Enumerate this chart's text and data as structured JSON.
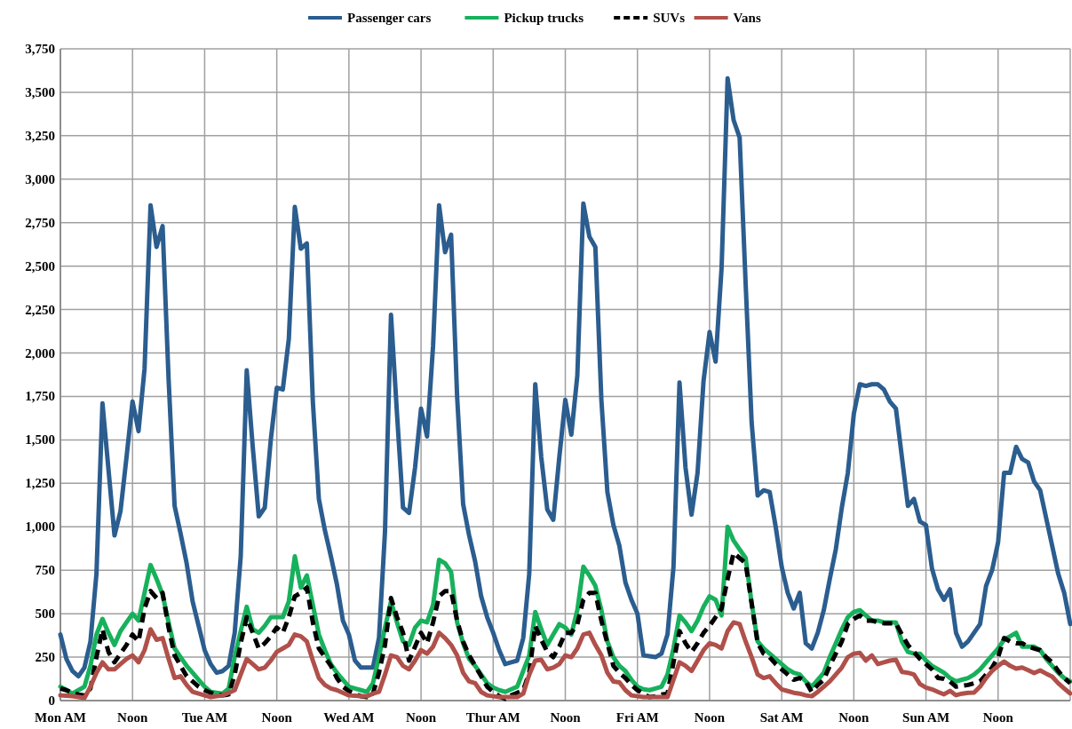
{
  "chart_data": {
    "type": "line",
    "ylim": [
      0,
      3750
    ],
    "categories": [
      "Mon AM",
      null,
      null,
      null,
      null,
      null,
      null,
      null,
      null,
      null,
      null,
      null,
      "Noon",
      null,
      null,
      null,
      null,
      null,
      null,
      null,
      null,
      null,
      null,
      null,
      "Tue AM",
      null,
      null,
      null,
      null,
      null,
      null,
      null,
      null,
      null,
      null,
      null,
      "Noon",
      null,
      null,
      null,
      null,
      null,
      null,
      null,
      null,
      null,
      null,
      null,
      "Wed AM",
      null,
      null,
      null,
      null,
      null,
      null,
      null,
      null,
      null,
      null,
      null,
      "Noon",
      null,
      null,
      null,
      null,
      null,
      null,
      null,
      null,
      null,
      null,
      null,
      "Thur AM",
      null,
      null,
      null,
      null,
      null,
      null,
      null,
      null,
      null,
      null,
      null,
      "Noon",
      null,
      null,
      null,
      null,
      null,
      null,
      null,
      null,
      null,
      null,
      null,
      "Fri AM",
      null,
      null,
      null,
      null,
      null,
      null,
      null,
      null,
      null,
      null,
      null,
      "Noon",
      null,
      null,
      null,
      null,
      null,
      null,
      null,
      null,
      null,
      null,
      null,
      "Sat AM",
      null,
      null,
      null,
      null,
      null,
      null,
      null,
      null,
      null,
      null,
      null,
      "Noon",
      null,
      null,
      null,
      null,
      null,
      null,
      null,
      null,
      null,
      null,
      null,
      "Sun AM",
      null,
      null,
      null,
      null,
      null,
      null,
      null,
      null,
      null,
      null,
      null,
      "Noon",
      null,
      null,
      null,
      null,
      null,
      null,
      null,
      null,
      null,
      null,
      null,
      null
    ],
    "yticks": [
      0,
      250,
      500,
      750,
      {
        "value": 1000,
        "label": "1,000"
      },
      {
        "value": 1250,
        "label": "1,250"
      },
      {
        "value": 1500,
        "label": "1,500"
      },
      {
        "value": 1750,
        "label": "1,750"
      },
      {
        "value": 2000,
        "label": "2,000"
      },
      {
        "value": 2250,
        "label": "2,250"
      },
      {
        "value": 2500,
        "label": "2,500"
      },
      {
        "value": 2750,
        "label": "2,750"
      },
      {
        "value": 3000,
        "label": "3,000"
      },
      {
        "value": 3250,
        "label": "3,250"
      },
      {
        "value": 3500,
        "label": "3,500"
      },
      {
        "value": 3750,
        "label": "3,750"
      }
    ],
    "grid": true,
    "legend": "top",
    "marker": "none",
    "series": [
      {
        "name": "Passenger cars",
        "color": "#2b5d8f",
        "line_style": "solid",
        "values": [
          380,
          240,
          170,
          140,
          190,
          340,
          730,
          1710,
          1330,
          950,
          1090,
          1400,
          1720,
          1550,
          1910,
          2850,
          2610,
          2730,
          1850,
          1120,
          960,
          790,
          570,
          430,
          290,
          210,
          160,
          170,
          200,
          390,
          830,
          1900,
          1460,
          1060,
          1110,
          1500,
          1800,
          1790,
          2080,
          2840,
          2600,
          2630,
          1720,
          1160,
          980,
          830,
          670,
          460,
          380,
          230,
          190,
          190,
          190,
          360,
          970,
          2220,
          1650,
          1110,
          1080,
          1340,
          1680,
          1520,
          2040,
          2850,
          2580,
          2680,
          1750,
          1130,
          950,
          800,
          600,
          480,
          390,
          290,
          210,
          220,
          230,
          360,
          730,
          1820,
          1400,
          1100,
          1040,
          1400,
          1730,
          1530,
          1870,
          2860,
          2670,
          2610,
          1730,
          1200,
          1010,
          890,
          680,
          580,
          500,
          260,
          255,
          250,
          270,
          380,
          770,
          1830,
          1340,
          1070,
          1310,
          1840,
          2120,
          1950,
          2490,
          3580,
          3340,
          3240,
          2400,
          1600,
          1180,
          1210,
          1200,
          1000,
          770,
          620,
          530,
          620,
          330,
          300,
          390,
          520,
          700,
          870,
          1110,
          1310,
          1650,
          1820,
          1810,
          1820,
          1820,
          1790,
          1720,
          1680,
          1400,
          1120,
          1160,
          1030,
          1010,
          760,
          640,
          580,
          640,
          390,
          310,
          340,
          390,
          440,
          660,
          750,
          910,
          1310,
          1310,
          1460,
          1390,
          1370,
          1260,
          1210,
          1050,
          890,
          730,
          620,
          440
        ]
      },
      {
        "name": "Pickup trucks",
        "color": "#17b15c",
        "line_style": "solid",
        "values": [
          80,
          60,
          40,
          60,
          80,
          200,
          380,
          470,
          390,
          320,
          400,
          450,
          500,
          460,
          620,
          780,
          700,
          610,
          450,
          300,
          250,
          200,
          160,
          120,
          80,
          50,
          45,
          40,
          70,
          250,
          400,
          540,
          410,
          390,
          430,
          480,
          480,
          480,
          570,
          830,
          650,
          720,
          550,
          380,
          290,
          210,
          160,
          120,
          80,
          70,
          60,
          50,
          100,
          250,
          420,
          570,
          450,
          340,
          320,
          420,
          460,
          450,
          550,
          810,
          790,
          740,
          450,
          330,
          240,
          200,
          150,
          100,
          75,
          60,
          50,
          65,
          80,
          170,
          260,
          510,
          410,
          320,
          380,
          440,
          420,
          380,
          520,
          770,
          720,
          660,
          520,
          340,
          250,
          200,
          170,
          120,
          80,
          65,
          60,
          70,
          80,
          150,
          300,
          490,
          450,
          400,
          460,
          540,
          600,
          580,
          490,
          1000,
          920,
          870,
          820,
          560,
          340,
          300,
          270,
          240,
          210,
          180,
          160,
          150,
          110,
          80,
          120,
          160,
          250,
          330,
          410,
          480,
          510,
          520,
          490,
          460,
          460,
          450,
          450,
          450,
          340,
          280,
          270,
          270,
          230,
          200,
          180,
          160,
          130,
          110,
          120,
          130,
          150,
          180,
          220,
          260,
          300,
          350,
          370,
          390,
          310,
          310,
          310,
          290,
          240,
          200,
          160,
          130,
          110
        ]
      },
      {
        "name": "SUVs",
        "color": "#000000",
        "line_style": "dashed",
        "values": [
          70,
          60,
          45,
          35,
          30,
          70,
          250,
          410,
          280,
          220,
          270,
          320,
          380,
          340,
          530,
          630,
          590,
          620,
          420,
          260,
          200,
          140,
          110,
          80,
          60,
          45,
          35,
          30,
          35,
          150,
          330,
          480,
          390,
          300,
          330,
          370,
          420,
          390,
          480,
          600,
          620,
          650,
          450,
          300,
          250,
          200,
          130,
          80,
          55,
          40,
          25,
          20,
          40,
          160,
          320,
          590,
          480,
          390,
          230,
          310,
          390,
          330,
          450,
          600,
          630,
          630,
          460,
          340,
          260,
          200,
          140,
          80,
          50,
          25,
          10,
          30,
          45,
          60,
          160,
          430,
          350,
          280,
          250,
          310,
          390,
          390,
          440,
          580,
          620,
          620,
          460,
          330,
          200,
          160,
          130,
          90,
          60,
          40,
          20,
          25,
          35,
          40,
          220,
          400,
          330,
          280,
          330,
          390,
          430,
          480,
          530,
          700,
          850,
          820,
          790,
          560,
          330,
          270,
          250,
          210,
          180,
          150,
          120,
          130,
          110,
          50,
          90,
          120,
          200,
          270,
          340,
          440,
          470,
          490,
          460,
          460,
          450,
          445,
          445,
          445,
          380,
          320,
          280,
          240,
          210,
          180,
          130,
          125,
          110,
          80,
          85,
          90,
          100,
          110,
          150,
          190,
          250,
          360,
          340,
          330,
          330,
          310,
          300,
          290,
          250,
          220,
          170,
          130,
          100
        ]
      },
      {
        "name": "Vans",
        "color": "#b0504a",
        "line_style": "solid",
        "values": [
          30,
          28,
          25,
          20,
          15,
          80,
          160,
          220,
          180,
          180,
          210,
          240,
          260,
          220,
          290,
          410,
          350,
          360,
          240,
          130,
          140,
          90,
          50,
          40,
          30,
          20,
          25,
          30,
          45,
          60,
          150,
          240,
          210,
          180,
          190,
          230,
          280,
          300,
          320,
          380,
          370,
          340,
          230,
          130,
          90,
          70,
          60,
          45,
          30,
          28,
          26,
          25,
          40,
          50,
          150,
          260,
          250,
          200,
          180,
          230,
          290,
          270,
          310,
          390,
          360,
          320,
          260,
          160,
          110,
          100,
          50,
          30,
          25,
          20,
          20,
          20,
          20,
          40,
          150,
          230,
          235,
          180,
          190,
          210,
          260,
          250,
          300,
          380,
          390,
          320,
          260,
          160,
          110,
          105,
          60,
          30,
          25,
          20,
          20,
          20,
          20,
          20,
          120,
          220,
          200,
          170,
          230,
          290,
          330,
          320,
          300,
          400,
          450,
          440,
          340,
          250,
          150,
          130,
          140,
          100,
          65,
          55,
          45,
          40,
          30,
          25,
          50,
          80,
          110,
          150,
          190,
          250,
          270,
          275,
          230,
          260,
          210,
          220,
          230,
          235,
          165,
          160,
          150,
          95,
          75,
          65,
          50,
          36,
          56,
          31,
          40,
          45,
          46,
          80,
          130,
          170,
          200,
          225,
          200,
          184,
          190,
          175,
          158,
          174,
          155,
          138,
          100,
          70,
          41
        ]
      }
    ]
  }
}
